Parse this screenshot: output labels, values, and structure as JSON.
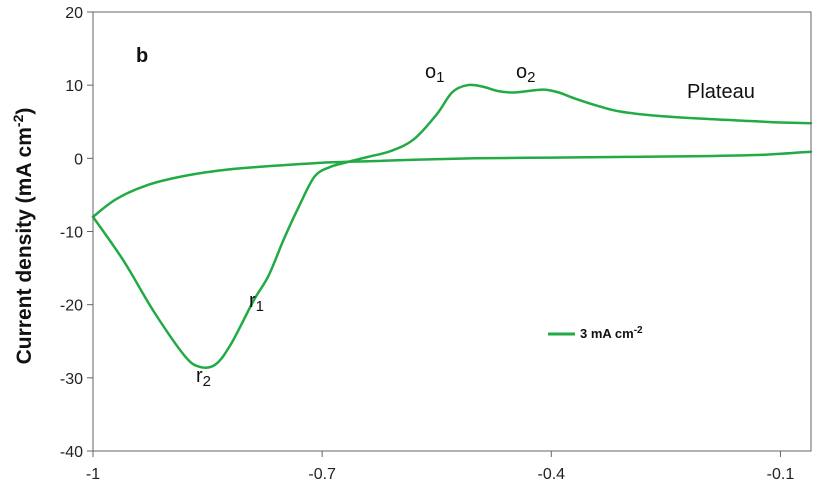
{
  "chart_data": {
    "type": "line",
    "panel_label": "b",
    "xlabel": "",
    "ylabel": "Current density (mA cm",
    "ylabel_sup": "-2",
    "ylabel_end": ")",
    "xlim": [
      -1,
      -0.06
    ],
    "ylim": [
      -40,
      20
    ],
    "x_ticks": [
      -1,
      -0.7,
      -0.4,
      -0.1
    ],
    "x_tick_labels": [
      "-1",
      "-0.7",
      "-0.4",
      "-0.1"
    ],
    "y_ticks": [
      20,
      10,
      0,
      -10,
      -20,
      -30,
      -40
    ],
    "y_tick_labels": [
      "20",
      "10",
      "0",
      "-10",
      "-20",
      "-30",
      "-40"
    ],
    "grid": false,
    "legend_position": "center-right",
    "series": [
      {
        "name": "3 mA cm",
        "name_sup": "-2",
        "color": "#22aa44",
        "x": [
          -1.0,
          -0.96,
          -0.92,
          -0.88,
          -0.86,
          -0.84,
          -0.82,
          -0.79,
          -0.77,
          -0.75,
          -0.73,
          -0.71,
          -0.69,
          -0.67,
          -0.64,
          -0.61,
          -0.58,
          -0.55,
          -0.53,
          -0.51,
          -0.49,
          -0.47,
          -0.45,
          -0.43,
          -0.41,
          -0.39,
          -0.37,
          -0.34,
          -0.31,
          -0.26,
          -0.2,
          -0.14,
          -0.1,
          -0.06
        ],
        "y": [
          -8.0,
          -14.0,
          -21.0,
          -27.0,
          -28.5,
          -28.2,
          -25.5,
          -19.5,
          -16.0,
          -11.0,
          -6.5,
          -2.5,
          -1.2,
          -0.6,
          0.2,
          1.0,
          2.6,
          6.0,
          9.0,
          10.0,
          9.8,
          9.2,
          9.0,
          9.2,
          9.4,
          9.0,
          8.2,
          7.2,
          6.4,
          5.8,
          5.4,
          5.1,
          4.9,
          4.8
        ]
      },
      {
        "name": "",
        "color": "#22aa44",
        "x": [
          -1.0,
          -0.97,
          -0.93,
          -0.88,
          -0.82,
          -0.76,
          -0.7,
          -0.64,
          -0.58,
          -0.5,
          -0.4,
          -0.3,
          -0.2,
          -0.12,
          -0.06
        ],
        "y": [
          -8.0,
          -5.6,
          -3.7,
          -2.4,
          -1.5,
          -1.0,
          -0.6,
          -0.4,
          -0.2,
          0.0,
          0.1,
          0.2,
          0.3,
          0.5,
          0.9
        ]
      }
    ],
    "annotations": [
      {
        "text": "o",
        "sub": "1"
      },
      {
        "text": "o",
        "sub": "2"
      },
      {
        "text": "Plateau",
        "sub": ""
      },
      {
        "text": "r",
        "sub": "1"
      },
      {
        "text": "r",
        "sub": "2"
      }
    ]
  }
}
